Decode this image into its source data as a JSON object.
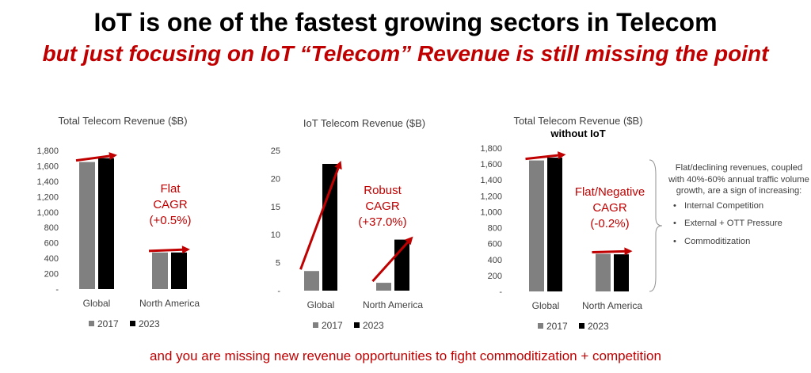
{
  "header": {
    "title": "IoT is one of the fastest growing sectors in Telecom",
    "subtitle": "but just focusing on IoT “Telecom” Revenue is still missing the point"
  },
  "footer": "and you are missing new revenue opportunities to fight commoditization + competition",
  "colors": {
    "series_2017": "#808080",
    "series_2023": "#000000",
    "accent": "#c00000"
  },
  "chart_data": [
    {
      "type": "bar",
      "title": "Total Telecom Revenue ($B)",
      "subtitle": "",
      "categories": [
        "Global",
        "North America"
      ],
      "series": [
        {
          "name": "2017",
          "values": [
            1650,
            475
          ]
        },
        {
          "name": "2023",
          "values": [
            1700,
            475
          ]
        }
      ],
      "ylim": [
        0,
        1800
      ],
      "yticks": [
        "-",
        "200",
        "400",
        "600",
        "800",
        "1,000",
        "1,200",
        "1,400",
        "1,600",
        "1,800"
      ],
      "annotation": [
        "Flat",
        "CAGR",
        "(+0.5%)"
      ],
      "legend": "bottom"
    },
    {
      "type": "bar",
      "title": "IoT Telecom Revenue ($B)",
      "subtitle": "",
      "categories": [
        "Global",
        "North America"
      ],
      "series": [
        {
          "name": "2017",
          "values": [
            3.5,
            1.4
          ]
        },
        {
          "name": "2023",
          "values": [
            22.6,
            9.1
          ]
        }
      ],
      "ylim": [
        0,
        25
      ],
      "yticks": [
        "-",
        "5",
        "10",
        "15",
        "20",
        "25"
      ],
      "annotation": [
        "Robust",
        "CAGR",
        "(+37.0%)"
      ],
      "legend": "bottom"
    },
    {
      "type": "bar",
      "title": "Total Telecom Revenue ($B)",
      "subtitle": "without IoT",
      "categories": [
        "Global",
        "North America"
      ],
      "series": [
        {
          "name": "2017",
          "values": [
            1645,
            472
          ]
        },
        {
          "name": "2023",
          "values": [
            1680,
            466
          ]
        }
      ],
      "ylim": [
        0,
        1800
      ],
      "yticks": [
        "-",
        "200",
        "400",
        "600",
        "800",
        "1,000",
        "1,200",
        "1,400",
        "1,600",
        "1,800"
      ],
      "annotation": [
        "Flat/Negative",
        "CAGR",
        "(-0.2%)"
      ],
      "legend": "bottom"
    }
  ],
  "side_note": {
    "intro": "Flat/declining revenues, coupled with 40%-60% annual traffic volume growth, are a sign of increasing:",
    "bullets": [
      "Internal Competition",
      "External + OTT Pressure",
      "Commoditization"
    ]
  }
}
